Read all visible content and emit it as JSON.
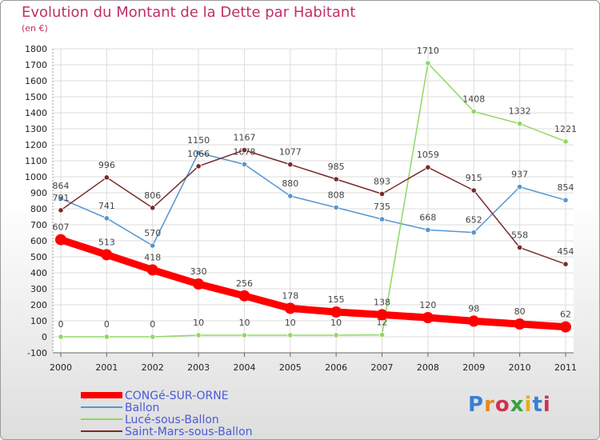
{
  "title": "Evolution du Montant de la Dette par Habitant",
  "unit": "(en €)",
  "logo": "Proxiti",
  "chart_data": {
    "type": "line",
    "x": [
      "2000",
      "2001",
      "2002",
      "2003",
      "2004",
      "2005",
      "2006",
      "2007",
      "2008",
      "2009",
      "2010",
      "2011"
    ],
    "ylim": [
      -100,
      1800
    ],
    "yticks": [
      -100,
      0,
      100,
      200,
      300,
      400,
      500,
      600,
      700,
      800,
      900,
      1000,
      1100,
      1200,
      1300,
      1400,
      1500,
      1600,
      1700,
      1800
    ],
    "grid": true,
    "legend_position": "bottom-left",
    "series": [
      {
        "name": "CONGé-SUR-ORNE",
        "color": "#ff0000",
        "values": [
          607,
          513,
          418,
          330,
          256,
          178,
          155,
          138,
          120,
          98,
          80,
          62
        ]
      },
      {
        "name": "Ballon",
        "color": "#5596d0",
        "values": [
          864,
          741,
          570,
          1150,
          1078,
          880,
          808,
          735,
          668,
          652,
          937,
          854
        ]
      },
      {
        "name": "Lucé-sous-Ballon",
        "color": "#90d860",
        "values": [
          0,
          0,
          0,
          10,
          10,
          10,
          10,
          12,
          1710,
          1408,
          1332,
          1221
        ]
      },
      {
        "name": "Saint-Mars-sous-Ballon",
        "color": "#7a2a2a",
        "values": [
          791,
          996,
          806,
          1066,
          1167,
          1077,
          985,
          893,
          1059,
          915,
          558,
          454
        ]
      }
    ]
  }
}
